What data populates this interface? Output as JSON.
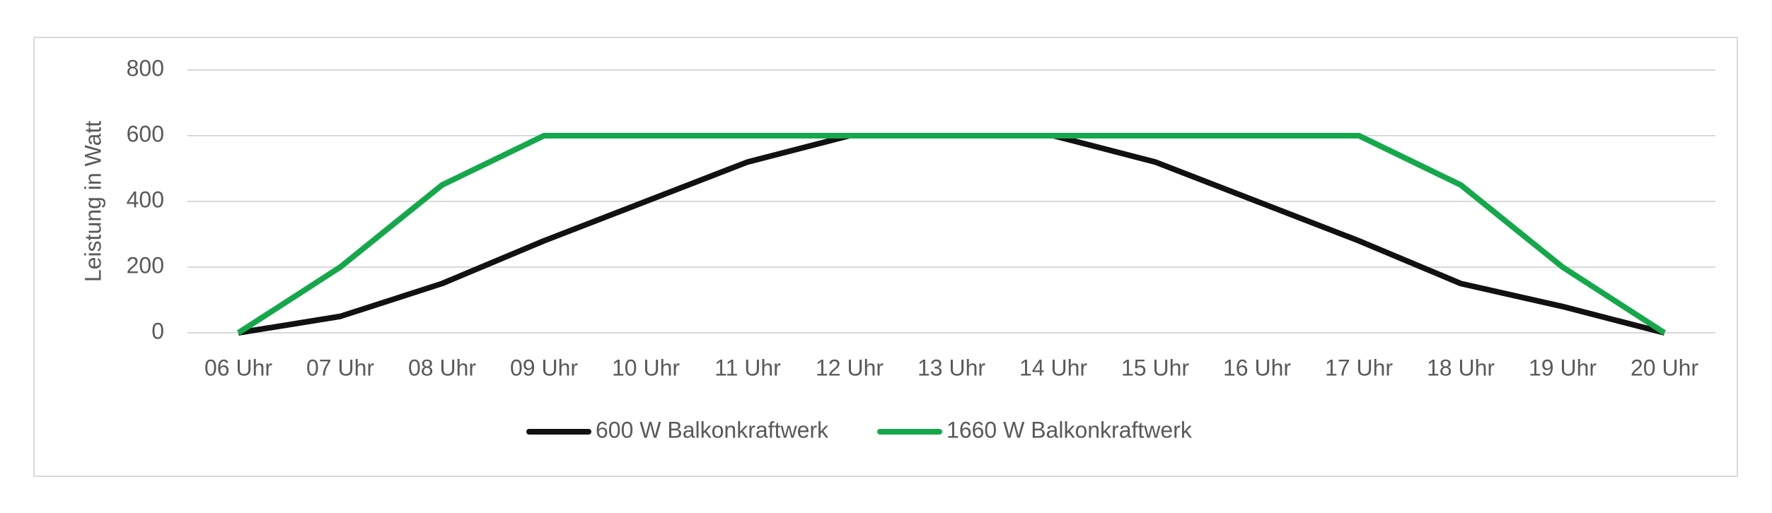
{
  "chart_data": {
    "type": "line",
    "y_axis_label": "Leistung in Watt",
    "categories": [
      "06 Uhr",
      "07 Uhr",
      "08 Uhr",
      "09 Uhr",
      "10 Uhr",
      "11 Uhr",
      "12 Uhr",
      "13 Uhr",
      "14 Uhr",
      "15 Uhr",
      "16 Uhr",
      "17 Uhr",
      "18 Uhr",
      "19 Uhr",
      "20 Uhr"
    ],
    "series": [
      {
        "name": "600 W Balkonkraftwerk",
        "color": "#111111",
        "values": [
          0,
          50,
          150,
          280,
          400,
          520,
          600,
          600,
          600,
          520,
          400,
          280,
          150,
          80,
          0
        ]
      },
      {
        "name": "1660 W Balkonkraftwerk",
        "color": "#14a84b",
        "values": [
          0,
          200,
          450,
          600,
          600,
          600,
          600,
          600,
          600,
          600,
          600,
          600,
          450,
          200,
          0
        ]
      }
    ],
    "ylim": [
      0,
      800
    ],
    "yticks": [
      0,
      200,
      400,
      600,
      800
    ],
    "grid": true,
    "legend": "bottom"
  }
}
